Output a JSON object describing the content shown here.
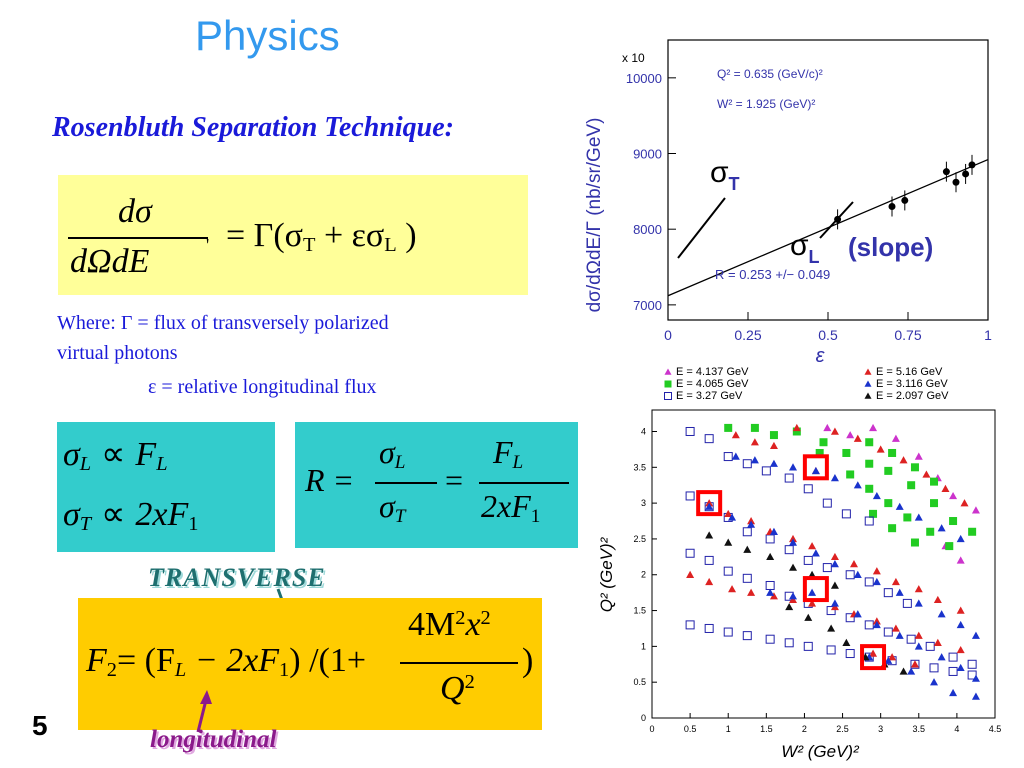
{
  "slide": {
    "title": "Physics",
    "subtitle": "Rosenbluth Separation Technique:",
    "page_number": "5"
  },
  "equations": {
    "main": {
      "numerator": "dσ",
      "denominator": "dΩdE",
      "prime": "'",
      "rhs": "= Γ(σ",
      "sub_t": "T",
      "plus": " + εσ",
      "sub_l": "L",
      "close": " )"
    },
    "where_line1": "Where: Γ = flux of transversely polarized",
    "where_line2": "virtual photons",
    "epsilon_line": "ε = relative longitudinal flux",
    "proportional": {
      "l_lhs": "σ",
      "l_sub": "L",
      "l_op": "∝",
      "l_rhs": "F",
      "l_rhs_sub": "L",
      "t_lhs": "σ",
      "t_sub": "T",
      "t_op": "∝",
      "t_rhs": "2xF",
      "t_rhs_sub": "1"
    },
    "ratio": {
      "lhs": "R =",
      "num1": "σ",
      "num1_sub": "L",
      "den1": "σ",
      "den1_sub": "T",
      "eq": "=",
      "num2": "F",
      "num2_sub": "L",
      "den2": "2xF",
      "den2_sub": "1"
    },
    "f2": {
      "lhs": "F",
      "lhs_sub": "2",
      "part1": "= (F",
      "part1_sub": "L",
      "part2": " − 2xF",
      "part2_sub": "1",
      "part3": ") /(1+",
      "num": "4M",
      "num_sup1": "2",
      "num_x": "x",
      "num_sup2": "2",
      "den": "Q",
      "den_sup": "2",
      "close": ")"
    }
  },
  "labels": {
    "transverse": "TRANSVERSE",
    "longitudinal": "longitudinal"
  },
  "colors": {
    "title": "#3399ee",
    "subtitle": "#1a1ad9",
    "eq_box": "#ffff99",
    "teal_box": "#33cccc",
    "f2_box": "#ffcc00",
    "highlight": "#ff0000"
  },
  "chart_data": [
    {
      "type": "scatter",
      "xlabel": "ε",
      "ylabel": "dσ/dΩdE/Γ (nb/sr/GeV)",
      "y_multiplier_label": "x 10",
      "xlim": [
        0,
        1
      ],
      "ylim": [
        6800,
        10500
      ],
      "x_ticks": [
        0,
        0.25,
        0.5,
        0.75,
        1
      ],
      "x_tick_labels": [
        "0",
        "0.25",
        "0.5",
        "0.75",
        "1"
      ],
      "y_ticks": [
        7000,
        8000,
        9000,
        10000
      ],
      "y_tick_labels": [
        "7000",
        "8000",
        "9000",
        "10000"
      ],
      "points": [
        {
          "x": 0.53,
          "y": 8130
        },
        {
          "x": 0.7,
          "y": 8300
        },
        {
          "x": 0.74,
          "y": 8380
        },
        {
          "x": 0.87,
          "y": 8760
        },
        {
          "x": 0.9,
          "y": 8620
        },
        {
          "x": 0.93,
          "y": 8730
        },
        {
          "x": 0.95,
          "y": 8850
        }
      ],
      "fit_line": {
        "x0": 0,
        "y0": 7120,
        "x1": 1,
        "y1": 8920
      },
      "annotations": {
        "q2": "Q² = 0.635 (GeV/c)²",
        "w2": "W² = 1.925 (GeV)²",
        "sigma_t": "σ",
        "sigma_t_sub": "T",
        "sigma_l": "σ",
        "sigma_l_sub": "L",
        "slope": "(slope)",
        "r_value": "R = 0.253 +/− 0.049"
      }
    },
    {
      "type": "scatter",
      "xlabel": "W² (GeV)²",
      "ylabel": "Q² (GeV)²",
      "xlim": [
        0,
        4.5
      ],
      "ylim": [
        0,
        4.3
      ],
      "x_ticks": [
        0,
        0.5,
        1,
        1.5,
        2,
        2.5,
        3,
        3.5,
        4,
        4.5
      ],
      "x_tick_labels": [
        "0",
        "0.5",
        "1",
        "1.5",
        "2",
        "2.5",
        "3",
        "3.5",
        "4",
        "4.5"
      ],
      "y_ticks": [
        0,
        0.5,
        1,
        1.5,
        2,
        2.5,
        3,
        3.5,
        4
      ],
      "y_tick_labels": [
        "0",
        "0.5",
        "1",
        "1.5",
        "2",
        "2.5",
        "3",
        "3.5",
        "4"
      ],
      "series": [
        {
          "name": "E = 4.137 GeV",
          "marker": "triangle",
          "color": "#cc33cc",
          "points": [
            [
              2.3,
              4.05
            ],
            [
              2.6,
              3.95
            ],
            [
              2.9,
              4.05
            ],
            [
              3.2,
              3.9
            ],
            [
              3.5,
              3.65
            ],
            [
              3.75,
              3.35
            ],
            [
              3.95,
              3.1
            ],
            [
              4.25,
              2.9
            ],
            [
              3.85,
              2.4
            ],
            [
              4.05,
              2.2
            ]
          ]
        },
        {
          "name": "E = 4.065 GeV",
          "marker": "square",
          "color": "#22cc22",
          "points": [
            [
              1.0,
              4.05
            ],
            [
              1.35,
              4.05
            ],
            [
              1.6,
              3.95
            ],
            [
              1.9,
              4.0
            ],
            [
              2.25,
              3.85
            ],
            [
              2.55,
              3.7
            ],
            [
              2.85,
              3.55
            ],
            [
              3.1,
              3.45
            ],
            [
              3.4,
              3.25
            ],
            [
              3.7,
              3.0
            ],
            [
              3.95,
              2.75
            ],
            [
              4.2,
              2.6
            ],
            [
              2.6,
              3.4
            ],
            [
              2.85,
              3.2
            ],
            [
              3.1,
              3.0
            ],
            [
              3.35,
              2.8
            ],
            [
              3.65,
              2.6
            ],
            [
              3.9,
              2.4
            ],
            [
              2.9,
              2.85
            ],
            [
              3.15,
              2.65
            ],
            [
              3.45,
              2.45
            ],
            [
              2.2,
              3.7
            ],
            [
              2.85,
              3.85
            ],
            [
              3.15,
              3.7
            ],
            [
              3.45,
              3.5
            ],
            [
              3.7,
              3.3
            ]
          ]
        },
        {
          "name": "E = 3.27 GeV",
          "marker": "open-square",
          "color": "#2222aa",
          "points": [
            [
              0.5,
              4.0
            ],
            [
              0.75,
              3.9
            ],
            [
              1.0,
              3.65
            ],
            [
              1.25,
              3.55
            ],
            [
              1.5,
              3.45
            ],
            [
              1.8,
              3.35
            ],
            [
              2.05,
              3.2
            ],
            [
              2.3,
              3.0
            ],
            [
              2.55,
              2.85
            ],
            [
              2.85,
              2.75
            ],
            [
              0.5,
              3.1
            ],
            [
              0.75,
              2.95
            ],
            [
              1.0,
              2.8
            ],
            [
              1.25,
              2.6
            ],
            [
              1.55,
              2.5
            ],
            [
              1.8,
              2.35
            ],
            [
              2.05,
              2.2
            ],
            [
              2.3,
              2.1
            ],
            [
              2.6,
              2.0
            ],
            [
              2.85,
              1.9
            ],
            [
              3.1,
              1.75
            ],
            [
              3.35,
              1.6
            ],
            [
              0.5,
              2.3
            ],
            [
              0.75,
              2.2
            ],
            [
              1.0,
              2.05
            ],
            [
              1.25,
              1.95
            ],
            [
              1.55,
              1.85
            ],
            [
              1.8,
              1.7
            ],
            [
              2.05,
              1.6
            ],
            [
              2.35,
              1.5
            ],
            [
              2.6,
              1.4
            ],
            [
              2.85,
              1.3
            ],
            [
              3.1,
              1.2
            ],
            [
              3.4,
              1.1
            ],
            [
              3.65,
              1.0
            ],
            [
              3.95,
              0.85
            ],
            [
              4.2,
              0.75
            ],
            [
              0.5,
              1.3
            ],
            [
              0.75,
              1.25
            ],
            [
              1.0,
              1.2
            ],
            [
              1.25,
              1.15
            ],
            [
              1.55,
              1.1
            ],
            [
              1.8,
              1.05
            ],
            [
              2.05,
              1.0
            ],
            [
              2.35,
              0.95
            ],
            [
              2.6,
              0.9
            ],
            [
              2.85,
              0.85
            ],
            [
              3.15,
              0.8
            ],
            [
              3.45,
              0.75
            ],
            [
              3.7,
              0.7
            ],
            [
              3.95,
              0.65
            ],
            [
              4.2,
              0.6
            ]
          ]
        },
        {
          "name": "E = 5.16 GeV",
          "marker": "triangle",
          "color": "#dd2222",
          "points": [
            [
              1.1,
              3.95
            ],
            [
              1.35,
              3.85
            ],
            [
              1.6,
              3.8
            ],
            [
              1.9,
              4.05
            ],
            [
              2.15,
              3.45
            ],
            [
              2.4,
              4.0
            ],
            [
              2.7,
              3.9
            ],
            [
              3.0,
              3.75
            ],
            [
              3.3,
              3.6
            ],
            [
              3.6,
              3.4
            ],
            [
              3.85,
              3.2
            ],
            [
              4.1,
              3.0
            ],
            [
              0.75,
              3.0
            ],
            [
              1.0,
              2.85
            ],
            [
              1.3,
              2.75
            ],
            [
              1.55,
              2.6
            ],
            [
              1.85,
              2.5
            ],
            [
              2.1,
              2.4
            ],
            [
              2.4,
              2.25
            ],
            [
              2.65,
              2.15
            ],
            [
              2.95,
              2.05
            ],
            [
              3.2,
              1.9
            ],
            [
              3.5,
              1.8
            ],
            [
              3.75,
              1.65
            ],
            [
              4.05,
              1.5
            ],
            [
              0.5,
              2.0
            ],
            [
              0.75,
              1.9
            ],
            [
              1.05,
              1.8
            ],
            [
              1.3,
              1.75
            ],
            [
              1.6,
              1.7
            ],
            [
              1.85,
              1.65
            ],
            [
              2.1,
              1.6
            ],
            [
              2.4,
              1.55
            ],
            [
              2.65,
              1.45
            ],
            [
              2.95,
              1.35
            ],
            [
              3.2,
              1.25
            ],
            [
              3.5,
              1.15
            ],
            [
              3.75,
              1.05
            ],
            [
              4.05,
              0.95
            ],
            [
              2.9,
              0.9
            ],
            [
              3.15,
              0.85
            ],
            [
              3.45,
              0.75
            ]
          ]
        },
        {
          "name": "E = 3.116 GeV",
          "marker": "triangle",
          "color": "#1a33cc",
          "points": [
            [
              1.1,
              3.65
            ],
            [
              1.35,
              3.6
            ],
            [
              1.6,
              3.55
            ],
            [
              1.85,
              3.5
            ],
            [
              2.15,
              3.45
            ],
            [
              2.4,
              3.35
            ],
            [
              2.7,
              3.25
            ],
            [
              2.95,
              3.1
            ],
            [
              3.25,
              2.95
            ],
            [
              3.5,
              2.8
            ],
            [
              3.8,
              2.65
            ],
            [
              4.05,
              2.5
            ],
            [
              0.75,
              2.95
            ],
            [
              1.05,
              2.8
            ],
            [
              1.3,
              2.7
            ],
            [
              1.6,
              2.6
            ],
            [
              1.85,
              2.45
            ],
            [
              2.15,
              2.3
            ],
            [
              2.4,
              2.15
            ],
            [
              2.7,
              2.0
            ],
            [
              2.95,
              1.9
            ],
            [
              3.25,
              1.75
            ],
            [
              3.5,
              1.6
            ],
            [
              3.8,
              1.45
            ],
            [
              4.05,
              1.3
            ],
            [
              4.25,
              1.15
            ],
            [
              1.55,
              1.75
            ],
            [
              1.85,
              1.7
            ],
            [
              2.1,
              1.75
            ],
            [
              2.4,
              1.6
            ],
            [
              2.7,
              1.45
            ],
            [
              2.95,
              1.3
            ],
            [
              3.25,
              1.15
            ],
            [
              3.5,
              1.0
            ],
            [
              3.8,
              0.85
            ],
            [
              4.05,
              0.7
            ],
            [
              2.85,
              0.85
            ],
            [
              3.1,
              0.8
            ],
            [
              3.4,
              0.65
            ],
            [
              3.7,
              0.5
            ],
            [
              3.95,
              0.35
            ],
            [
              4.25,
              0.3
            ],
            [
              4.25,
              0.55
            ]
          ]
        },
        {
          "name": "E = 2.097 GeV",
          "marker": "triangle",
          "color": "#111111",
          "points": [
            [
              0.75,
              2.55
            ],
            [
              1.0,
              2.45
            ],
            [
              1.25,
              2.35
            ],
            [
              1.55,
              2.25
            ],
            [
              1.85,
              2.1
            ],
            [
              2.1,
              2.0
            ],
            [
              2.4,
              1.85
            ],
            [
              1.8,
              1.55
            ],
            [
              2.05,
              1.4
            ],
            [
              2.35,
              1.25
            ],
            [
              2.55,
              1.05
            ],
            [
              2.8,
              0.85
            ],
            [
              3.05,
              0.75
            ],
            [
              3.3,
              0.65
            ]
          ]
        }
      ],
      "highlights": [
        {
          "x": 0.75,
          "y": 3.0
        },
        {
          "x": 2.15,
          "y": 3.5
        },
        {
          "x": 2.15,
          "y": 1.8
        },
        {
          "x": 2.9,
          "y": 0.85
        }
      ],
      "legend_placement": "top"
    }
  ]
}
